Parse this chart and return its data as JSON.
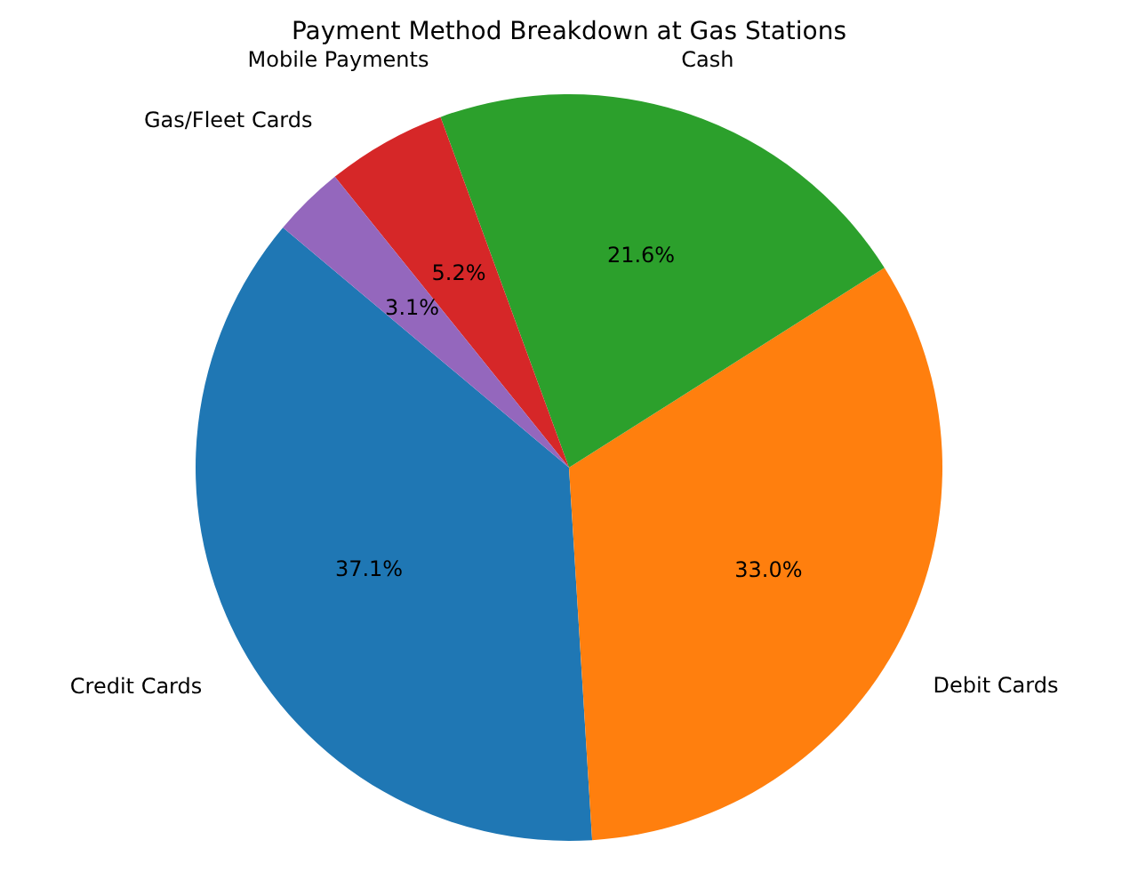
{
  "chart_data": {
    "type": "pie",
    "title": "Payment Method Breakdown at Gas Stations",
    "categories": [
      "Credit Cards",
      "Debit Cards",
      "Cash",
      "Mobile Payments",
      "Gas/Fleet Cards"
    ],
    "values": [
      37.1,
      33.0,
      21.6,
      5.2,
      3.1
    ],
    "value_labels": [
      "37.1%",
      "33.0%",
      "21.6%",
      "5.2%",
      "3.1%"
    ],
    "colors": [
      "#1f77b4",
      "#ff7f0e",
      "#2ca02c",
      "#d62728",
      "#9467bd"
    ]
  }
}
